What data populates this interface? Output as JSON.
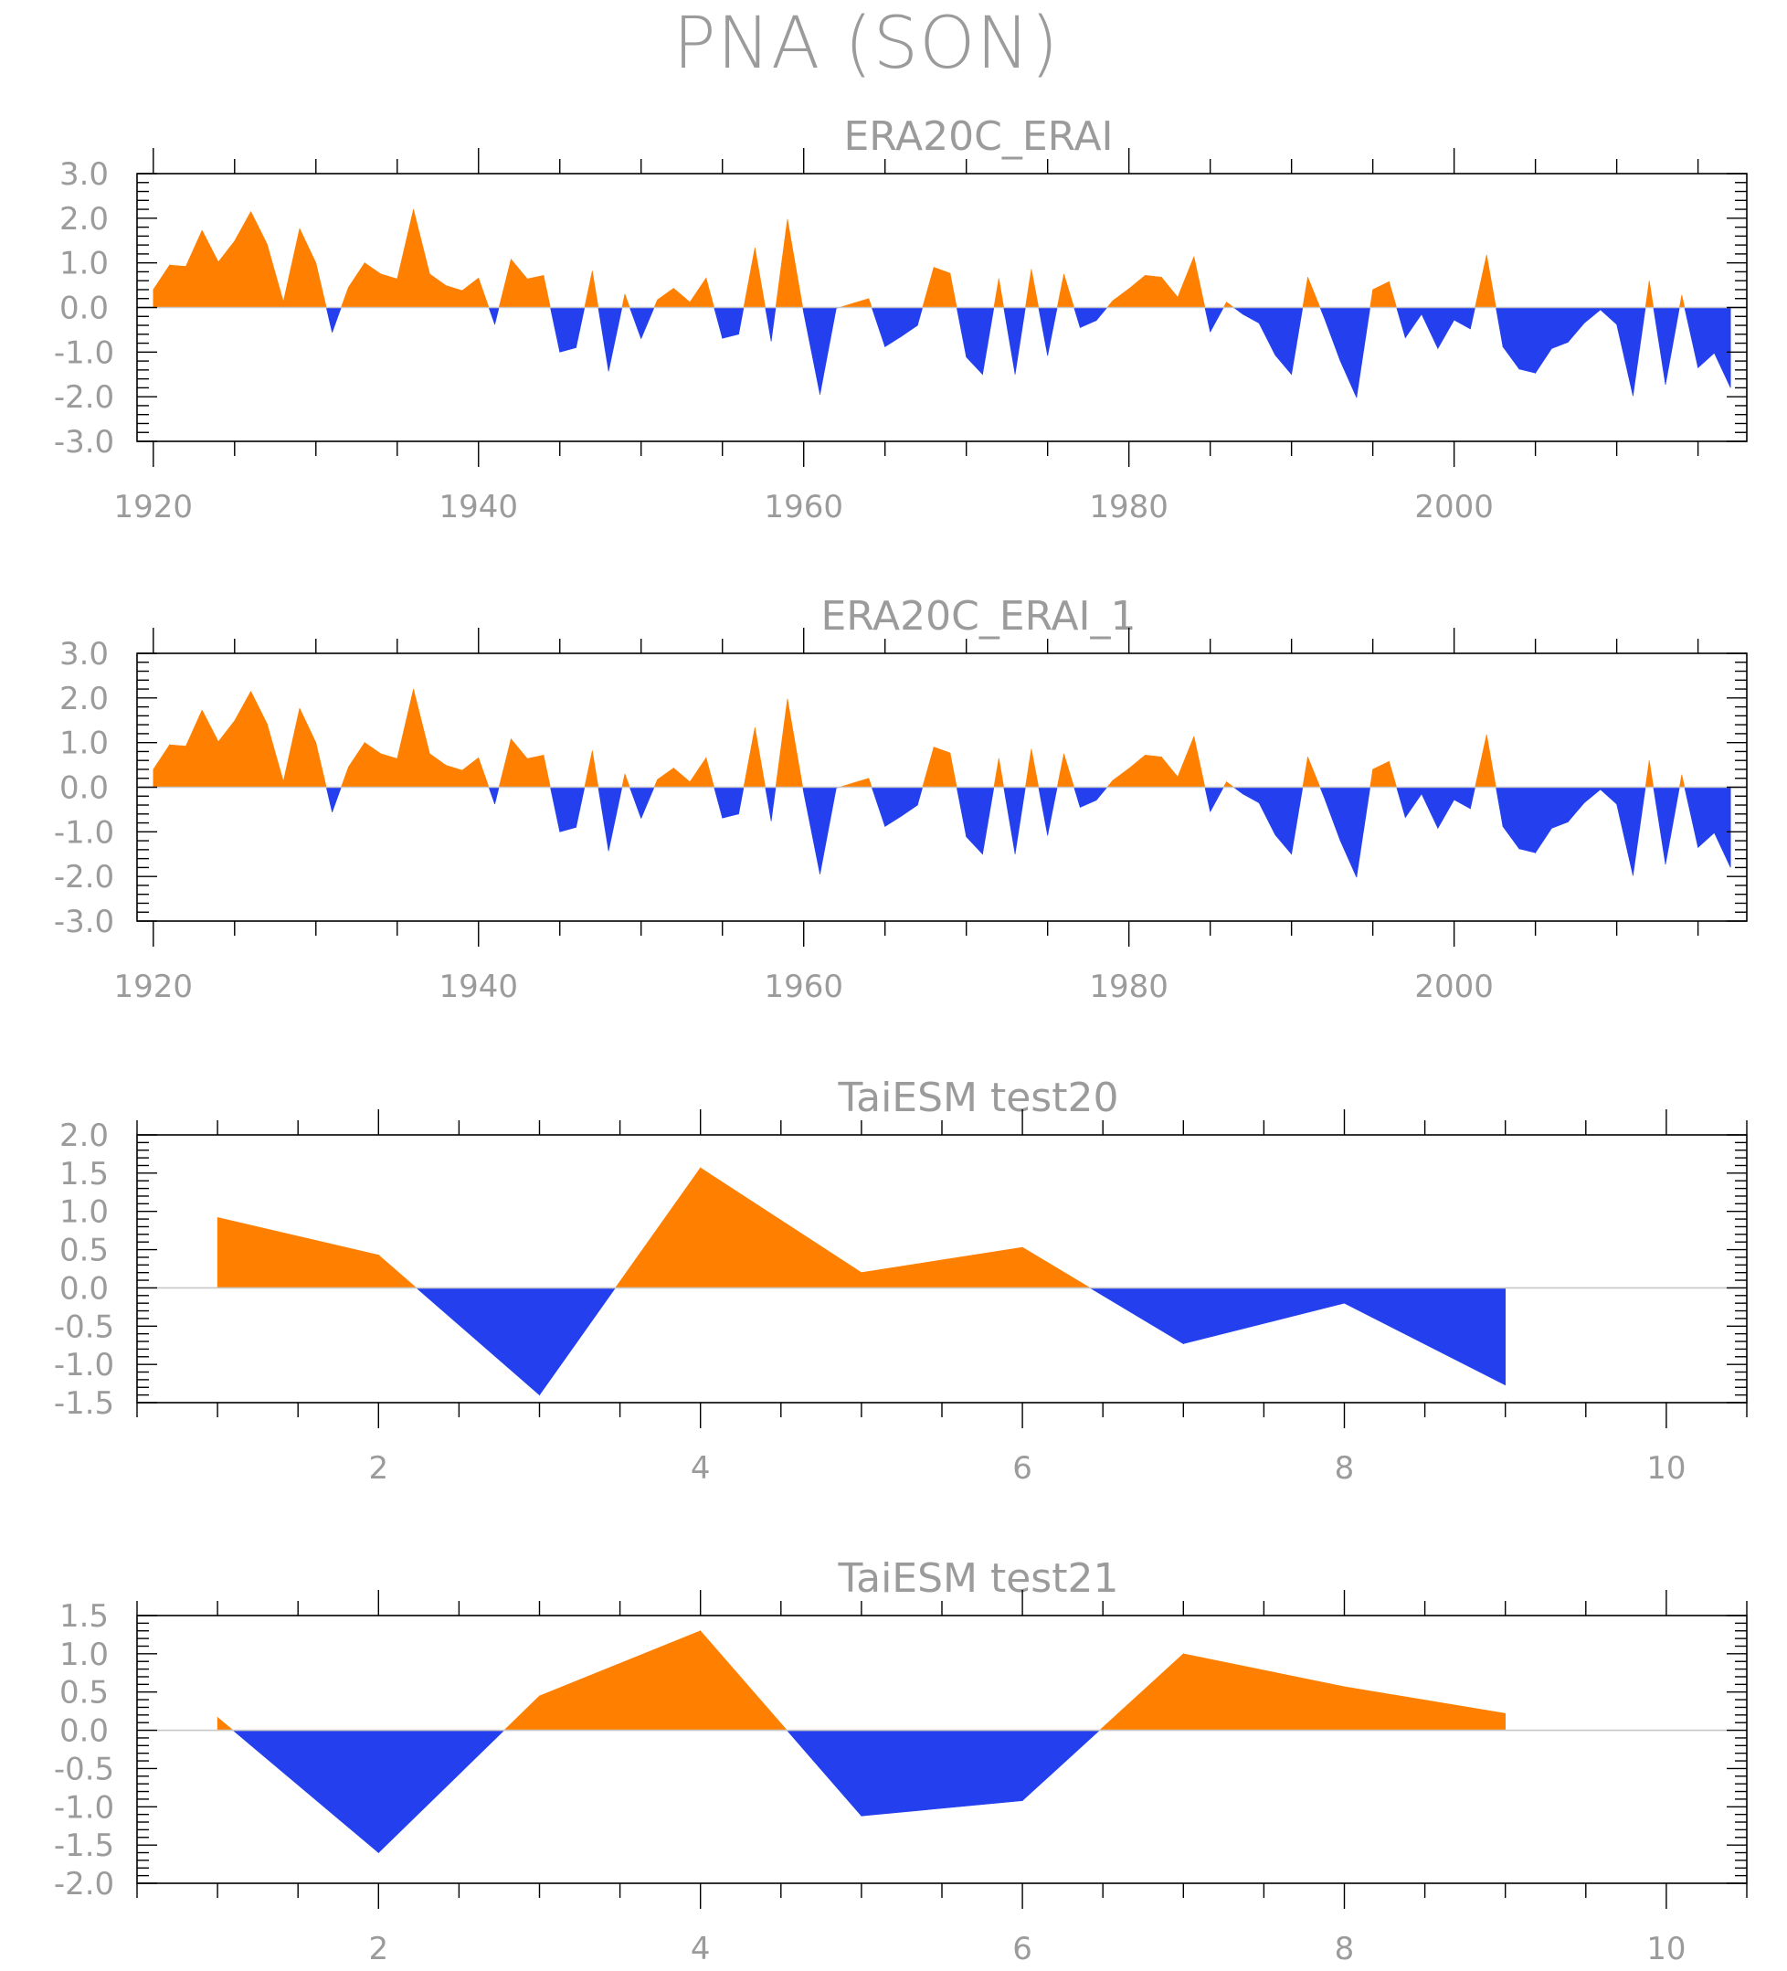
{
  "figure": {
    "title": "PNA (SON)"
  },
  "colors": {
    "positive": "#ff8000",
    "negative": "#2440ee",
    "axis": "#000000",
    "text": "#9b9b9b",
    "zero_line": "#c8c8c8"
  },
  "chart_data": [
    {
      "type": "area",
      "title": "ERA20C_ERAI",
      "xlim": [
        1919,
        2018
      ],
      "ylim": [
        -3.0,
        3.0
      ],
      "xticks": [
        1920,
        1940,
        1960,
        1980,
        2000
      ],
      "xtick_labels": [
        "1920",
        "1940",
        "1960",
        "1980",
        "2000"
      ],
      "yticks": [
        -3.0,
        -2.0,
        -1.0,
        0.0,
        1.0,
        2.0,
        3.0
      ],
      "ytick_labels": [
        "-3.0",
        "-2.0",
        "-1.0",
        "0.0",
        "1.0",
        "2.0",
        "3.0"
      ],
      "fill": "above positive / below negative",
      "x": [
        1920,
        1921,
        1922,
        1923,
        1924,
        1925,
        1926,
        1927,
        1928,
        1929,
        1930,
        1931,
        1932,
        1933,
        1934,
        1935,
        1936,
        1937,
        1938,
        1939,
        1940,
        1941,
        1942,
        1943,
        1944,
        1945,
        1946,
        1947,
        1948,
        1949,
        1950,
        1951,
        1952,
        1953,
        1954,
        1955,
        1956,
        1957,
        1958,
        1959,
        1960,
        1961,
        1962,
        1963,
        1964,
        1965,
        1966,
        1967,
        1968,
        1969,
        1970,
        1971,
        1972,
        1973,
        1974,
        1975,
        1976,
        1977,
        1978,
        1979,
        1980,
        1981,
        1982,
        1983,
        1984,
        1985,
        1986,
        1987,
        1988,
        1989,
        1990,
        1991,
        1992,
        1993,
        1994,
        1995,
        1996,
        1997,
        1998,
        1999,
        2000,
        2001,
        2002,
        2003,
        2004,
        2005,
        2006,
        2007,
        2008,
        2009,
        2010,
        2011,
        2012,
        2013,
        2014,
        2015,
        2016,
        2017
      ],
      "values": [
        0.4,
        0.95,
        0.92,
        1.73,
        1.02,
        1.49,
        2.15,
        1.42,
        0.13,
        1.77,
        1.0,
        -0.56,
        0.45,
        1.0,
        0.75,
        0.64,
        2.2,
        0.75,
        0.49,
        0.38,
        0.66,
        -0.38,
        1.08,
        0.64,
        0.72,
        -1.0,
        -0.9,
        0.82,
        -1.43,
        0.3,
        -0.7,
        0.17,
        0.43,
        0.12,
        0.66,
        -0.69,
        -0.6,
        1.34,
        -0.76,
        1.98,
        -0.12,
        -1.95,
        -0.02,
        0.09,
        0.2,
        -0.88,
        -0.65,
        -0.4,
        0.9,
        0.77,
        -1.11,
        -1.5,
        0.65,
        -1.5,
        0.86,
        -1.08,
        0.75,
        -0.45,
        -0.29,
        0.15,
        0.42,
        0.72,
        0.68,
        0.23,
        1.14,
        -0.55,
        0.12,
        -0.15,
        -0.35,
        -1.07,
        -1.5,
        0.68,
        -0.22,
        -1.2,
        -2.02,
        0.4,
        0.58,
        -0.68,
        -0.15,
        -0.92,
        -0.28,
        -0.48,
        1.18,
        -0.88,
        -1.38,
        -1.47,
        -0.92,
        -0.78,
        -0.35,
        -0.05,
        -0.38,
        -1.98,
        0.6,
        -1.73,
        0.28,
        -1.35,
        -1.02,
        -1.8
      ]
    },
    {
      "type": "area",
      "title": "ERA20C_ERAI_1",
      "xlim": [
        1919,
        2018
      ],
      "ylim": [
        -3.0,
        3.0
      ],
      "xticks": [
        1920,
        1940,
        1960,
        1980,
        2000
      ],
      "xtick_labels": [
        "1920",
        "1940",
        "1960",
        "1980",
        "2000"
      ],
      "yticks": [
        -3.0,
        -2.0,
        -1.0,
        0.0,
        1.0,
        2.0,
        3.0
      ],
      "ytick_labels": [
        "-3.0",
        "-2.0",
        "-1.0",
        "0.0",
        "1.0",
        "2.0",
        "3.0"
      ],
      "fill": "above positive / below negative",
      "x": [
        1920,
        1921,
        1922,
        1923,
        1924,
        1925,
        1926,
        1927,
        1928,
        1929,
        1930,
        1931,
        1932,
        1933,
        1934,
        1935,
        1936,
        1937,
        1938,
        1939,
        1940,
        1941,
        1942,
        1943,
        1944,
        1945,
        1946,
        1947,
        1948,
        1949,
        1950,
        1951,
        1952,
        1953,
        1954,
        1955,
        1956,
        1957,
        1958,
        1959,
        1960,
        1961,
        1962,
        1963,
        1964,
        1965,
        1966,
        1967,
        1968,
        1969,
        1970,
        1971,
        1972,
        1973,
        1974,
        1975,
        1976,
        1977,
        1978,
        1979,
        1980,
        1981,
        1982,
        1983,
        1984,
        1985,
        1986,
        1987,
        1988,
        1989,
        1990,
        1991,
        1992,
        1993,
        1994,
        1995,
        1996,
        1997,
        1998,
        1999,
        2000,
        2001,
        2002,
        2003,
        2004,
        2005,
        2006,
        2007,
        2008,
        2009,
        2010,
        2011,
        2012,
        2013,
        2014,
        2015,
        2016,
        2017
      ],
      "values": [
        0.4,
        0.95,
        0.92,
        1.73,
        1.02,
        1.49,
        2.15,
        1.42,
        0.13,
        1.77,
        1.0,
        -0.56,
        0.45,
        1.0,
        0.75,
        0.64,
        2.2,
        0.75,
        0.49,
        0.38,
        0.66,
        -0.38,
        1.08,
        0.64,
        0.72,
        -1.0,
        -0.9,
        0.82,
        -1.43,
        0.3,
        -0.7,
        0.17,
        0.43,
        0.12,
        0.66,
        -0.69,
        -0.6,
        1.34,
        -0.76,
        1.98,
        -0.12,
        -1.95,
        -0.02,
        0.09,
        0.2,
        -0.88,
        -0.65,
        -0.4,
        0.9,
        0.77,
        -1.11,
        -1.5,
        0.65,
        -1.5,
        0.86,
        -1.08,
        0.75,
        -0.45,
        -0.29,
        0.15,
        0.42,
        0.72,
        0.68,
        0.23,
        1.14,
        -0.55,
        0.12,
        -0.15,
        -0.35,
        -1.07,
        -1.5,
        0.68,
        -0.22,
        -1.2,
        -2.02,
        0.4,
        0.58,
        -0.68,
        -0.15,
        -0.92,
        -0.28,
        -0.48,
        1.18,
        -0.88,
        -1.38,
        -1.47,
        -0.92,
        -0.78,
        -0.35,
        -0.05,
        -0.38,
        -1.98,
        0.6,
        -1.73,
        0.28,
        -1.35,
        -1.02,
        -1.8
      ]
    },
    {
      "type": "area",
      "title": "TaiESM test20",
      "xlim": [
        0.5,
        10.5
      ],
      "ylim": [
        -1.5,
        2.0
      ],
      "xticks": [
        2,
        4,
        6,
        8,
        10
      ],
      "xtick_labels": [
        "2",
        "4",
        "6",
        "8",
        "10"
      ],
      "yticks": [
        -1.5,
        -1.0,
        -0.5,
        0.0,
        0.5,
        1.0,
        1.5,
        2.0
      ],
      "ytick_labels": [
        "-1.5",
        "-1.0",
        "-0.5",
        "0.0",
        "0.5",
        "1.0",
        "1.5",
        "2.0"
      ],
      "fill": "above positive / below negative",
      "x": [
        1,
        2,
        3,
        4,
        5,
        6,
        7,
        8,
        9
      ],
      "values": [
        0.92,
        0.43,
        -1.4,
        1.57,
        0.2,
        0.53,
        -0.73,
        -0.2,
        -1.27
      ]
    },
    {
      "type": "area",
      "title": "TaiESM test21",
      "xlim": [
        0.5,
        10.5
      ],
      "ylim": [
        -2.0,
        1.5
      ],
      "xticks": [
        2,
        4,
        6,
        8,
        10
      ],
      "xtick_labels": [
        "2",
        "4",
        "6",
        "8",
        "10"
      ],
      "yticks": [
        -2.0,
        -1.5,
        -1.0,
        -0.5,
        0.0,
        0.5,
        1.0,
        1.5
      ],
      "ytick_labels": [
        "-2.0",
        "-1.5",
        "-1.0",
        "-0.5",
        "0.0",
        "0.5",
        "1.0",
        "1.5"
      ],
      "fill": "above positive / below negative",
      "x": [
        1,
        2,
        3,
        4,
        5,
        6,
        7,
        8,
        9
      ],
      "values": [
        0.17,
        -1.6,
        0.45,
        1.3,
        -1.12,
        -0.92,
        1.0,
        0.57,
        0.22
      ]
    }
  ]
}
